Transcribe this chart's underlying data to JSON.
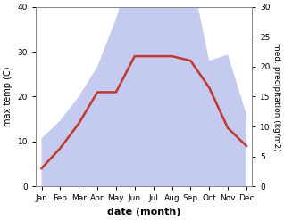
{
  "months": [
    "Jan",
    "Feb",
    "Mar",
    "Apr",
    "May",
    "Jun",
    "Jul",
    "Aug",
    "Sep",
    "Oct",
    "Nov",
    "Dec"
  ],
  "max_temp": [
    4,
    8.5,
    14,
    21,
    21,
    29,
    29,
    29,
    28,
    22,
    13,
    9
  ],
  "precipitation": [
    8,
    11,
    15,
    20,
    28,
    38,
    32,
    37,
    36,
    21,
    22,
    12
  ],
  "temp_color": "#c0392b",
  "precip_fill_color": "#c5caf0",
  "temp_ylim": [
    0,
    40
  ],
  "precip_ylim": [
    0,
    30
  ],
  "xlabel": "date (month)",
  "ylabel_left": "max temp (C)",
  "ylabel_right": "med. precipitation (kg/m2)",
  "bg_color": "#ffffff",
  "label_fontsize": 7,
  "tick_fontsize": 6.5
}
